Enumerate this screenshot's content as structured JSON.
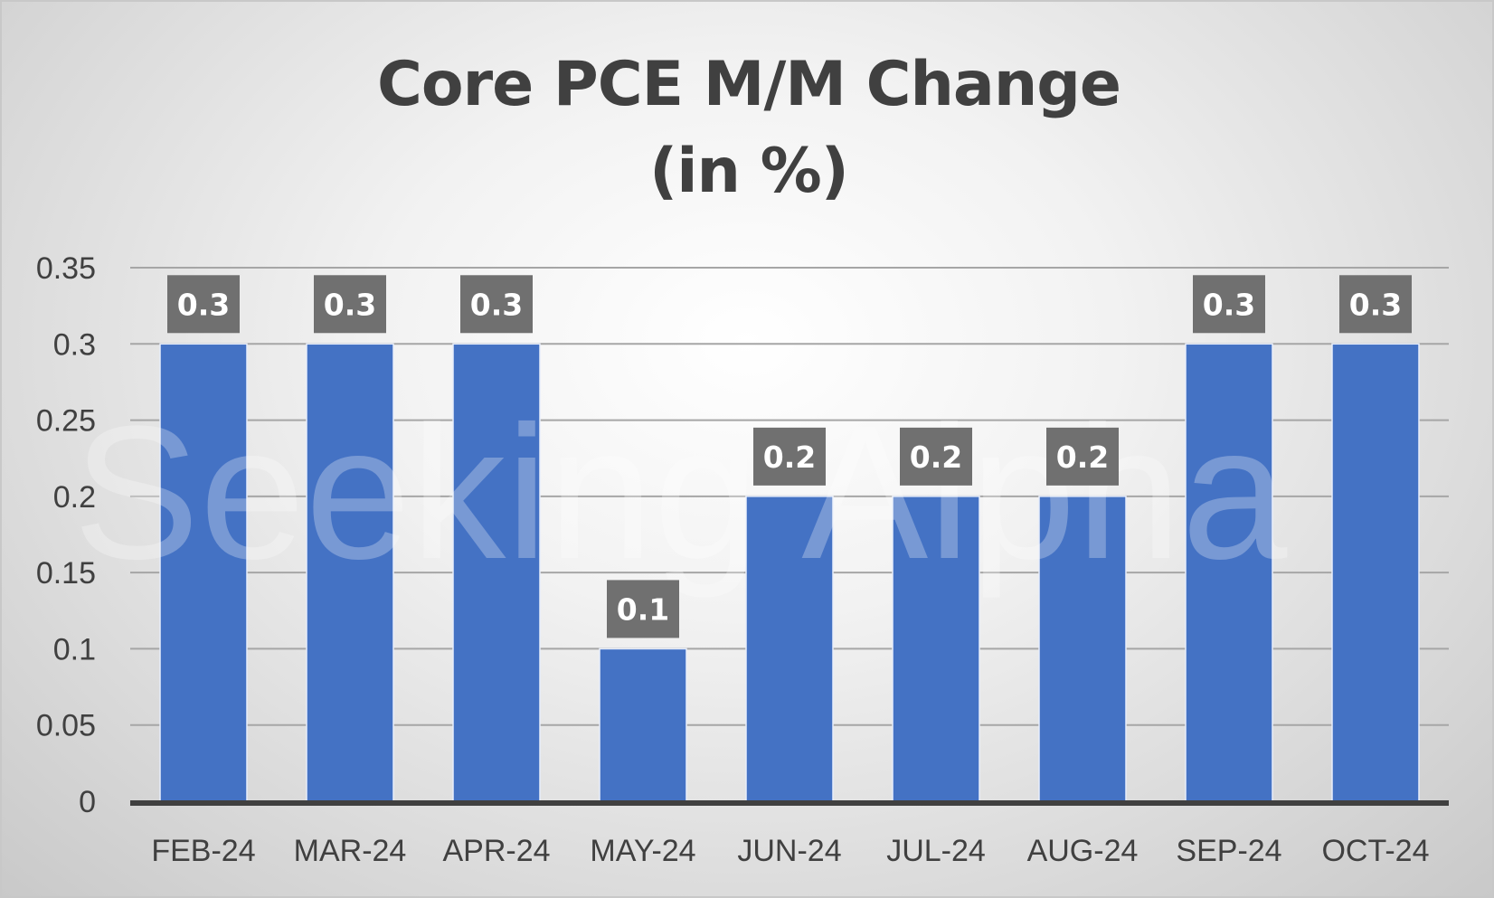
{
  "chart_data": {
    "type": "bar",
    "title_lines": [
      "Core PCE M/M Change",
      "(in %)"
    ],
    "categories": [
      "FEB-24",
      "MAR-24",
      "APR-24",
      "MAY-24",
      "JUN-24",
      "JUL-24",
      "AUG-24",
      "SEP-24",
      "OCT-24"
    ],
    "values": [
      0.3,
      0.3,
      0.3,
      0.1,
      0.2,
      0.2,
      0.2,
      0.3,
      0.3
    ],
    "data_labels": [
      "0.3",
      "0.3",
      "0.3",
      "0.1",
      "0.2",
      "0.2",
      "0.2",
      "0.3",
      "0.3"
    ],
    "ylim": [
      0,
      0.35
    ],
    "yticks": [
      "0",
      "0.05",
      "0.1",
      "0.15",
      "0.2",
      "0.25",
      "0.3",
      "0.35"
    ],
    "xlabel": "",
    "ylabel": "",
    "grid": true,
    "legend": "none",
    "colors": {
      "bar": "#4472c4",
      "data_label_bg": "#707070",
      "data_label_text": "#ffffff",
      "gridline": "#a6a6a6",
      "axis": "#404040",
      "text": "#404040"
    },
    "watermark": "Seeking Alpha"
  }
}
